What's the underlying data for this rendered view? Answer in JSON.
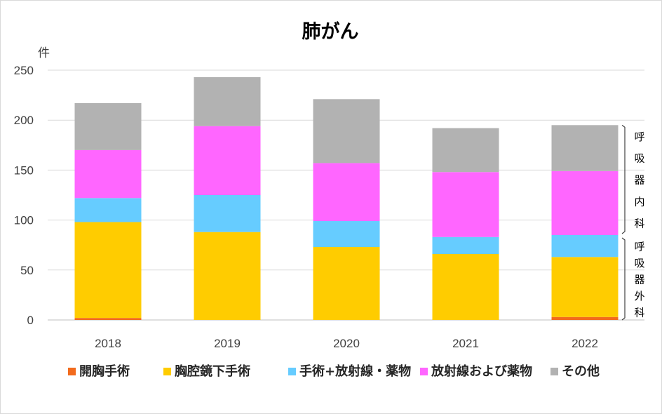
{
  "chart_data": {
    "type": "bar",
    "stacked": true,
    "title": "肺がん",
    "ylabel": "件",
    "xlabel": "",
    "ylim": [
      0,
      250
    ],
    "yticks": [
      0,
      50,
      100,
      150,
      200,
      250
    ],
    "grid": true,
    "legend_position": "bottom",
    "categories": [
      "2018",
      "2019",
      "2020",
      "2021",
      "2022"
    ],
    "series": [
      {
        "name": "開胸手術",
        "color": "#f26b1d",
        "values": [
          2,
          0,
          0,
          0,
          3
        ]
      },
      {
        "name": "胸腔鏡下手術",
        "color": "#ffcc00",
        "values": [
          96,
          88,
          73,
          66,
          60
        ]
      },
      {
        "name": "手術+放射線・薬物",
        "color": "#66ccff",
        "values": [
          24,
          37,
          26,
          17,
          22
        ]
      },
      {
        "name": "放射線および薬物",
        "color": "#ff66ff",
        "values": [
          48,
          69,
          58,
          65,
          64
        ]
      },
      {
        "name": "その他",
        "color": "#b2b2b2",
        "values": [
          47,
          49,
          64,
          44,
          46
        ]
      }
    ],
    "department_brackets": [
      {
        "label": "呼吸器内科",
        "from": 85,
        "to": 195
      },
      {
        "label": "呼吸器外科",
        "from": 0,
        "to": 85
      }
    ]
  }
}
